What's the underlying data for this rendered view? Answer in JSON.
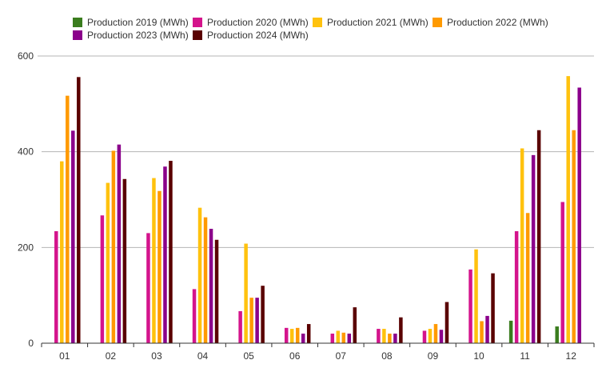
{
  "chart_data": {
    "type": "bar",
    "title": "",
    "xlabel": "",
    "ylabel": "",
    "ylim": [
      0,
      600
    ],
    "yticks": [
      0,
      200,
      400,
      600
    ],
    "grid": true,
    "legend_position": "top",
    "categories": [
      "01",
      "02",
      "03",
      "04",
      "05",
      "06",
      "07",
      "08",
      "09",
      "10",
      "11",
      "12"
    ],
    "series": [
      {
        "name": "Production 2019 (MWh)",
        "color": "#3a7d1e",
        "values": [
          null,
          null,
          null,
          null,
          null,
          null,
          null,
          null,
          null,
          null,
          47,
          35
        ]
      },
      {
        "name": "Production 2020 (MWh)",
        "color": "#d4148c",
        "values": [
          234,
          267,
          230,
          113,
          67,
          32,
          20,
          30,
          26,
          154,
          234,
          295
        ]
      },
      {
        "name": "Production 2021 (MWh)",
        "color": "#ffc20e",
        "values": [
          380,
          335,
          345,
          283,
          208,
          30,
          26,
          30,
          30,
          196,
          407,
          558
        ]
      },
      {
        "name": "Production 2022 (MWh)",
        "color": "#ff9a00",
        "values": [
          517,
          402,
          318,
          263,
          95,
          32,
          22,
          20,
          40,
          46,
          272,
          445
        ]
      },
      {
        "name": "Production 2023 (MWh)",
        "color": "#8b008b",
        "values": [
          444,
          415,
          369,
          239,
          95,
          20,
          20,
          20,
          28,
          57,
          393,
          534
        ]
      },
      {
        "name": "Production 2024 (MWh)",
        "color": "#5a0000",
        "values": [
          556,
          343,
          381,
          216,
          120,
          40,
          75,
          54,
          86,
          146,
          445,
          null
        ]
      }
    ]
  }
}
